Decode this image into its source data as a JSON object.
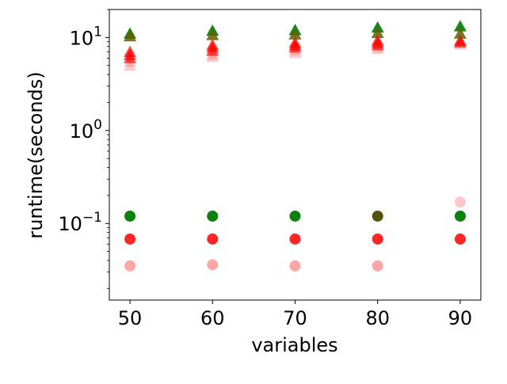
{
  "chart_data": {
    "type": "scatter",
    "title": "",
    "xlabel": "variables",
    "ylabel": "runtime(seconds)",
    "x_ticks": [
      50,
      60,
      70,
      80,
      90
    ],
    "x_tick_labels": [
      "50",
      "60",
      "70",
      "80",
      "90"
    ],
    "y_scale": "log",
    "y_ticks": [
      0.1,
      1,
      10
    ],
    "y_tick_labels": [
      {
        "base": "10",
        "exp": "−1"
      },
      {
        "base": "10",
        "exp": "0"
      },
      {
        "base": "10",
        "exp": "1"
      }
    ],
    "xlim": [
      47.5,
      92.5
    ],
    "ylim": [
      0.015,
      20
    ],
    "grid": false,
    "legend": "none",
    "colors": {
      "green": "#007a00",
      "red": "#ff0000",
      "olive": "#6b5a00",
      "dark_green": "#2e6b00"
    },
    "series": [
      {
        "marker": "circle",
        "color": "#ff4d4d",
        "opacity": 0.5,
        "points": [
          [
            50,
            0.035
          ],
          [
            60,
            0.036
          ],
          [
            70,
            0.035
          ],
          [
            80,
            0.035
          ]
        ]
      },
      {
        "marker": "circle",
        "color": "#ff4d4d",
        "opacity": 0.3,
        "points": [
          [
            90,
            0.17
          ]
        ]
      },
      {
        "marker": "circle",
        "color": "#ff0000",
        "opacity": 0.85,
        "points": [
          [
            50,
            0.068
          ],
          [
            60,
            0.068
          ],
          [
            70,
            0.068
          ],
          [
            80,
            0.068
          ],
          [
            90,
            0.068
          ]
        ]
      },
      {
        "marker": "circle",
        "color": "#007a00",
        "opacity": 0.95,
        "points": [
          [
            50,
            0.12
          ],
          [
            60,
            0.12
          ],
          [
            70,
            0.12
          ],
          [
            90,
            0.12
          ]
        ]
      },
      {
        "marker": "circle",
        "color": "#4a4a00",
        "opacity": 0.95,
        "points": [
          [
            80,
            0.12
          ]
        ]
      },
      {
        "marker": "triangle",
        "color": "#ff6666",
        "opacity": 0.35,
        "points": [
          [
            50,
            5.0
          ],
          [
            50,
            5.5
          ],
          [
            60,
            6.2
          ],
          [
            60,
            6.6
          ],
          [
            70,
            6.8
          ],
          [
            70,
            7.3
          ],
          [
            80,
            7.5
          ],
          [
            80,
            7.9
          ],
          [
            90,
            8.4
          ],
          [
            90,
            8.8
          ]
        ]
      },
      {
        "marker": "triangle",
        "color": "#ff0000",
        "opacity": 0.7,
        "points": [
          [
            50,
            6.0
          ],
          [
            50,
            6.5
          ],
          [
            50,
            7.0
          ],
          [
            60,
            7.2
          ],
          [
            60,
            7.8
          ],
          [
            60,
            8.3
          ],
          [
            70,
            7.8
          ],
          [
            70,
            8.3
          ],
          [
            70,
            8.8
          ],
          [
            80,
            8.3
          ],
          [
            80,
            8.8
          ],
          [
            80,
            9.3
          ],
          [
            90,
            8.9
          ],
          [
            90,
            9.3
          ]
        ]
      },
      {
        "marker": "triangle",
        "color": "#007a00",
        "opacity": 0.9,
        "points": [
          [
            50,
            11.0
          ],
          [
            60,
            11.8
          ],
          [
            70,
            12.0
          ],
          [
            80,
            12.8
          ],
          [
            90,
            13.2
          ]
        ]
      },
      {
        "marker": "triangle",
        "color": "#6b5a00",
        "opacity": 0.85,
        "points": [
          [
            50,
            10.3
          ],
          [
            60,
            10.6
          ],
          [
            70,
            10.8
          ],
          [
            80,
            11.2
          ],
          [
            90,
            11.0
          ]
        ]
      }
    ]
  }
}
